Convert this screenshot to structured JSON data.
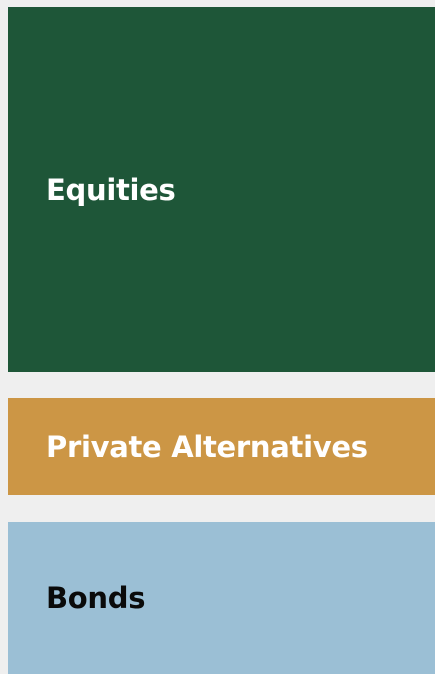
{
  "blocks": [
    {
      "label": "Equities"
    },
    {
      "label": "Private Alternatives"
    },
    {
      "label": "Bonds"
    }
  ]
}
